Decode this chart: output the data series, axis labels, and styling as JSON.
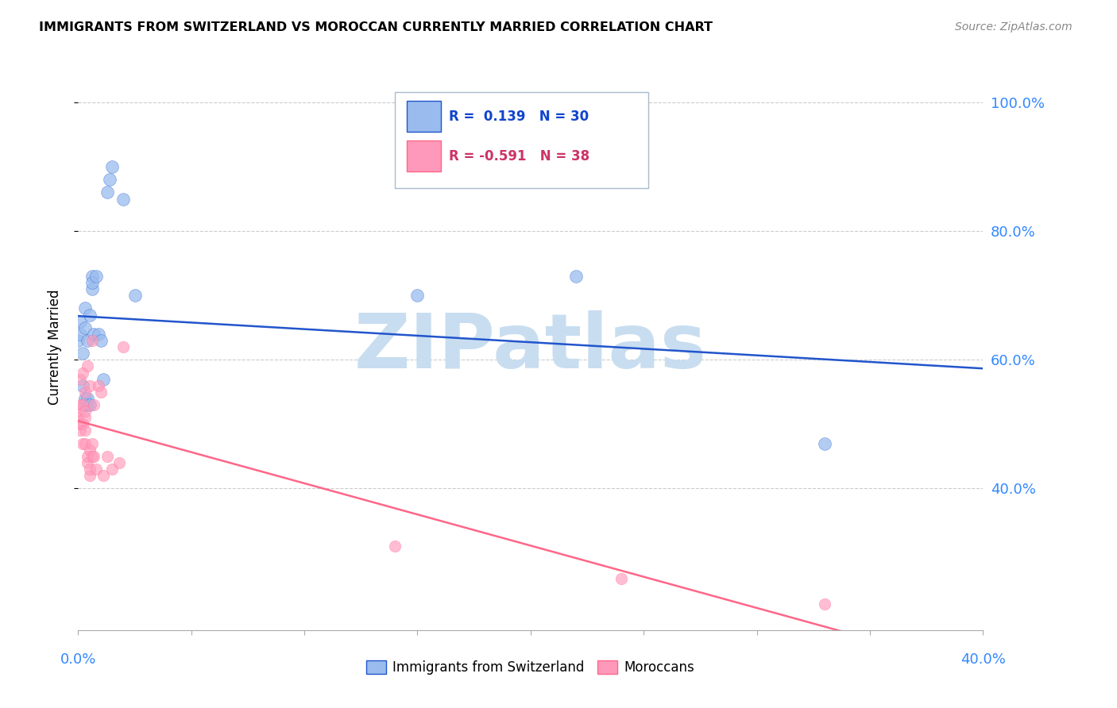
{
  "title": "IMMIGRANTS FROM SWITZERLAND VS MOROCCAN CURRENTLY MARRIED CORRELATION CHART",
  "source": "Source: ZipAtlas.com",
  "ylabel": "Currently Married",
  "legend_label1": "Immigrants from Switzerland",
  "legend_label2": "Moroccans",
  "r1": 0.139,
  "n1": 30,
  "r2": -0.591,
  "n2": 38,
  "color_swiss": "#99bbee",
  "color_moroccan": "#ff99bb",
  "color_line_swiss": "#2255cc",
  "color_line_moroccan": "#ff6688",
  "watermark": "ZIPatlas",
  "watermark_color": "#c8ddf0",
  "ytick_values": [
    0.4,
    0.6,
    0.8,
    1.0
  ],
  "ytick_labels": [
    "40.0%",
    "60.0%",
    "80.0%",
    "100.0%"
  ],
  "xlim": [
    0.0,
    0.4
  ],
  "ylim": [
    0.18,
    1.06
  ],
  "swiss_x": [
    0.0,
    0.001,
    0.001,
    0.002,
    0.002,
    0.003,
    0.003,
    0.003,
    0.003,
    0.004,
    0.004,
    0.004,
    0.005,
    0.005,
    0.006,
    0.006,
    0.006,
    0.007,
    0.008,
    0.009,
    0.01,
    0.011,
    0.013,
    0.014,
    0.015,
    0.02,
    0.025,
    0.15,
    0.22,
    0.33
  ],
  "swiss_y": [
    0.63,
    0.64,
    0.66,
    0.56,
    0.61,
    0.53,
    0.54,
    0.65,
    0.68,
    0.53,
    0.54,
    0.63,
    0.53,
    0.67,
    0.71,
    0.73,
    0.72,
    0.64,
    0.73,
    0.64,
    0.63,
    0.57,
    0.86,
    0.88,
    0.9,
    0.85,
    0.7,
    0.7,
    0.73,
    0.47
  ],
  "moroccan_x": [
    0.0,
    0.0,
    0.001,
    0.001,
    0.001,
    0.001,
    0.002,
    0.002,
    0.002,
    0.002,
    0.003,
    0.003,
    0.003,
    0.003,
    0.003,
    0.004,
    0.004,
    0.004,
    0.005,
    0.005,
    0.005,
    0.005,
    0.006,
    0.006,
    0.006,
    0.007,
    0.007,
    0.008,
    0.009,
    0.01,
    0.011,
    0.013,
    0.015,
    0.018,
    0.02,
    0.14,
    0.24,
    0.33
  ],
  "moroccan_y": [
    0.51,
    0.52,
    0.49,
    0.5,
    0.53,
    0.57,
    0.47,
    0.5,
    0.53,
    0.58,
    0.47,
    0.49,
    0.51,
    0.55,
    0.52,
    0.44,
    0.45,
    0.59,
    0.42,
    0.43,
    0.46,
    0.56,
    0.45,
    0.47,
    0.63,
    0.45,
    0.53,
    0.43,
    0.56,
    0.55,
    0.42,
    0.45,
    0.43,
    0.44,
    0.62,
    0.31,
    0.26,
    0.22
  ]
}
